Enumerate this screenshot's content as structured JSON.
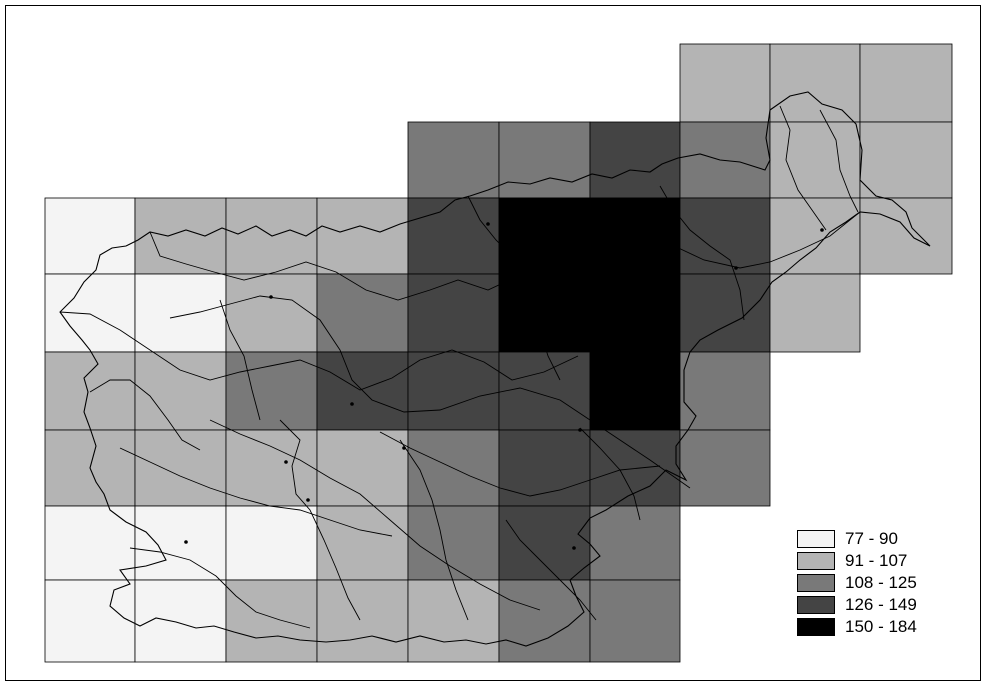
{
  "legend": {
    "classes": [
      {
        "label": "77 - 90",
        "color": "#f4f4f4",
        "level": 1
      },
      {
        "label": "91 - 107",
        "color": "#b4b4b4",
        "level": 2
      },
      {
        "label": "108 - 125",
        "color": "#797979",
        "level": 3
      },
      {
        "label": "126 - 149",
        "color": "#444444",
        "level": 4
      },
      {
        "label": "150 - 184",
        "color": "#000000",
        "level": 5
      }
    ]
  },
  "grid_cells": [
    {
      "id": "r0c7",
      "level": 2
    },
    {
      "id": "r0c8",
      "level": 2
    },
    {
      "id": "r0c9",
      "level": 2
    },
    {
      "id": "r1c4",
      "level": 3
    },
    {
      "id": "r1c5",
      "level": 3
    },
    {
      "id": "r1c6",
      "level": 4
    },
    {
      "id": "r1c7",
      "level": 3
    },
    {
      "id": "r1c8",
      "level": 2
    },
    {
      "id": "r1c9",
      "level": 2
    },
    {
      "id": "r2c0",
      "level": 1
    },
    {
      "id": "r2c1",
      "level": 2
    },
    {
      "id": "r2c2",
      "level": 2
    },
    {
      "id": "r2c3",
      "level": 2
    },
    {
      "id": "r2c4",
      "level": 4
    },
    {
      "id": "r2c5",
      "level": 5
    },
    {
      "id": "r2c6",
      "level": 5
    },
    {
      "id": "r2c7",
      "level": 4
    },
    {
      "id": "r2c8",
      "level": 2
    },
    {
      "id": "r2c9",
      "level": 2
    },
    {
      "id": "r3c0",
      "level": 1
    },
    {
      "id": "r3c1",
      "level": 1
    },
    {
      "id": "r3c2",
      "level": 2
    },
    {
      "id": "r3c3",
      "level": 3
    },
    {
      "id": "r3c4",
      "level": 4
    },
    {
      "id": "r3c5",
      "level": 5
    },
    {
      "id": "r3c6",
      "level": 5
    },
    {
      "id": "r3c7",
      "level": 4
    },
    {
      "id": "r3c8",
      "level": 2
    },
    {
      "id": "r4c0",
      "level": 2
    },
    {
      "id": "r4c1",
      "level": 2
    },
    {
      "id": "r4c2",
      "level": 3
    },
    {
      "id": "r4c3",
      "level": 4
    },
    {
      "id": "r4c4",
      "level": 4
    },
    {
      "id": "r4c5",
      "level": 4
    },
    {
      "id": "r4c6",
      "level": 5
    },
    {
      "id": "r4c7",
      "level": 3
    },
    {
      "id": "r5c0",
      "level": 2
    },
    {
      "id": "r5c1",
      "level": 2
    },
    {
      "id": "r5c2",
      "level": 2
    },
    {
      "id": "r5c3",
      "level": 2
    },
    {
      "id": "r5c4",
      "level": 3
    },
    {
      "id": "r5c5",
      "level": 4
    },
    {
      "id": "r5c6",
      "level": 4
    },
    {
      "id": "r5c7",
      "level": 3
    },
    {
      "id": "r6c0",
      "level": 1
    },
    {
      "id": "r6c1",
      "level": 1
    },
    {
      "id": "r6c2",
      "level": 1
    },
    {
      "id": "r6c3",
      "level": 2
    },
    {
      "id": "r6c4",
      "level": 3
    },
    {
      "id": "r6c5",
      "level": 4
    },
    {
      "id": "r6c6",
      "level": 3
    },
    {
      "id": "r7c0",
      "level": 1
    },
    {
      "id": "r7c1",
      "level": 1
    },
    {
      "id": "r7c2",
      "level": 2
    },
    {
      "id": "r7c3",
      "level": 2
    },
    {
      "id": "r7c4",
      "level": 2
    },
    {
      "id": "r7c5",
      "level": 3
    },
    {
      "id": "r7c6",
      "level": 3
    }
  ]
}
